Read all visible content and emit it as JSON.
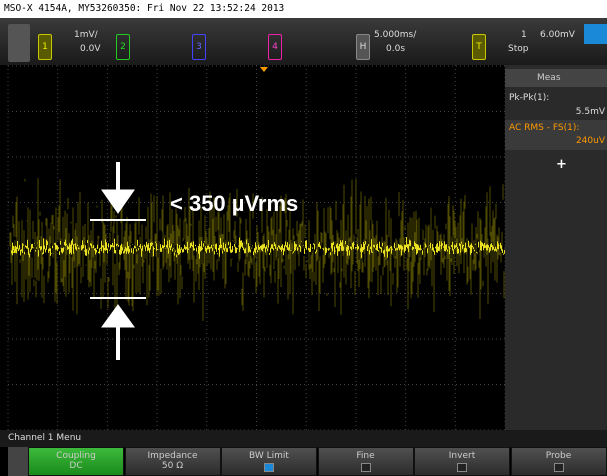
{
  "header": {
    "title": "MSO-X 4154A, MY53260350: Fri Nov 22 13:52:24 2013"
  },
  "channels": [
    {
      "number": "1",
      "scale": "1mV/",
      "offset": "0.0V"
    },
    {
      "number": "2"
    },
    {
      "number": "3"
    },
    {
      "number": "4"
    }
  ],
  "horizontal": {
    "label": "H",
    "scale": "5.000ms/",
    "position": "0.0s"
  },
  "trigger": {
    "label": "T",
    "source": "1",
    "level": "6.00mV",
    "status": "Stop"
  },
  "measurements": {
    "title": "Meas",
    "items": [
      {
        "name": "Pk-Pk(1):",
        "value": "5.5mV"
      },
      {
        "name": "AC RMS - FS(1):",
        "value": "240uV"
      }
    ],
    "add": "+"
  },
  "screen": {
    "annotation": "< 350 µVrms",
    "marker": "1"
  },
  "menu": {
    "title": "Channel 1 Menu",
    "softkeys": [
      {
        "label": "Coupling",
        "value": "DC"
      },
      {
        "label": "Impedance",
        "value": "50 Ω"
      },
      {
        "label": "BW Limit"
      },
      {
        "label": "Fine"
      },
      {
        "label": "Invert"
      },
      {
        "label": "Probe"
      }
    ]
  }
}
